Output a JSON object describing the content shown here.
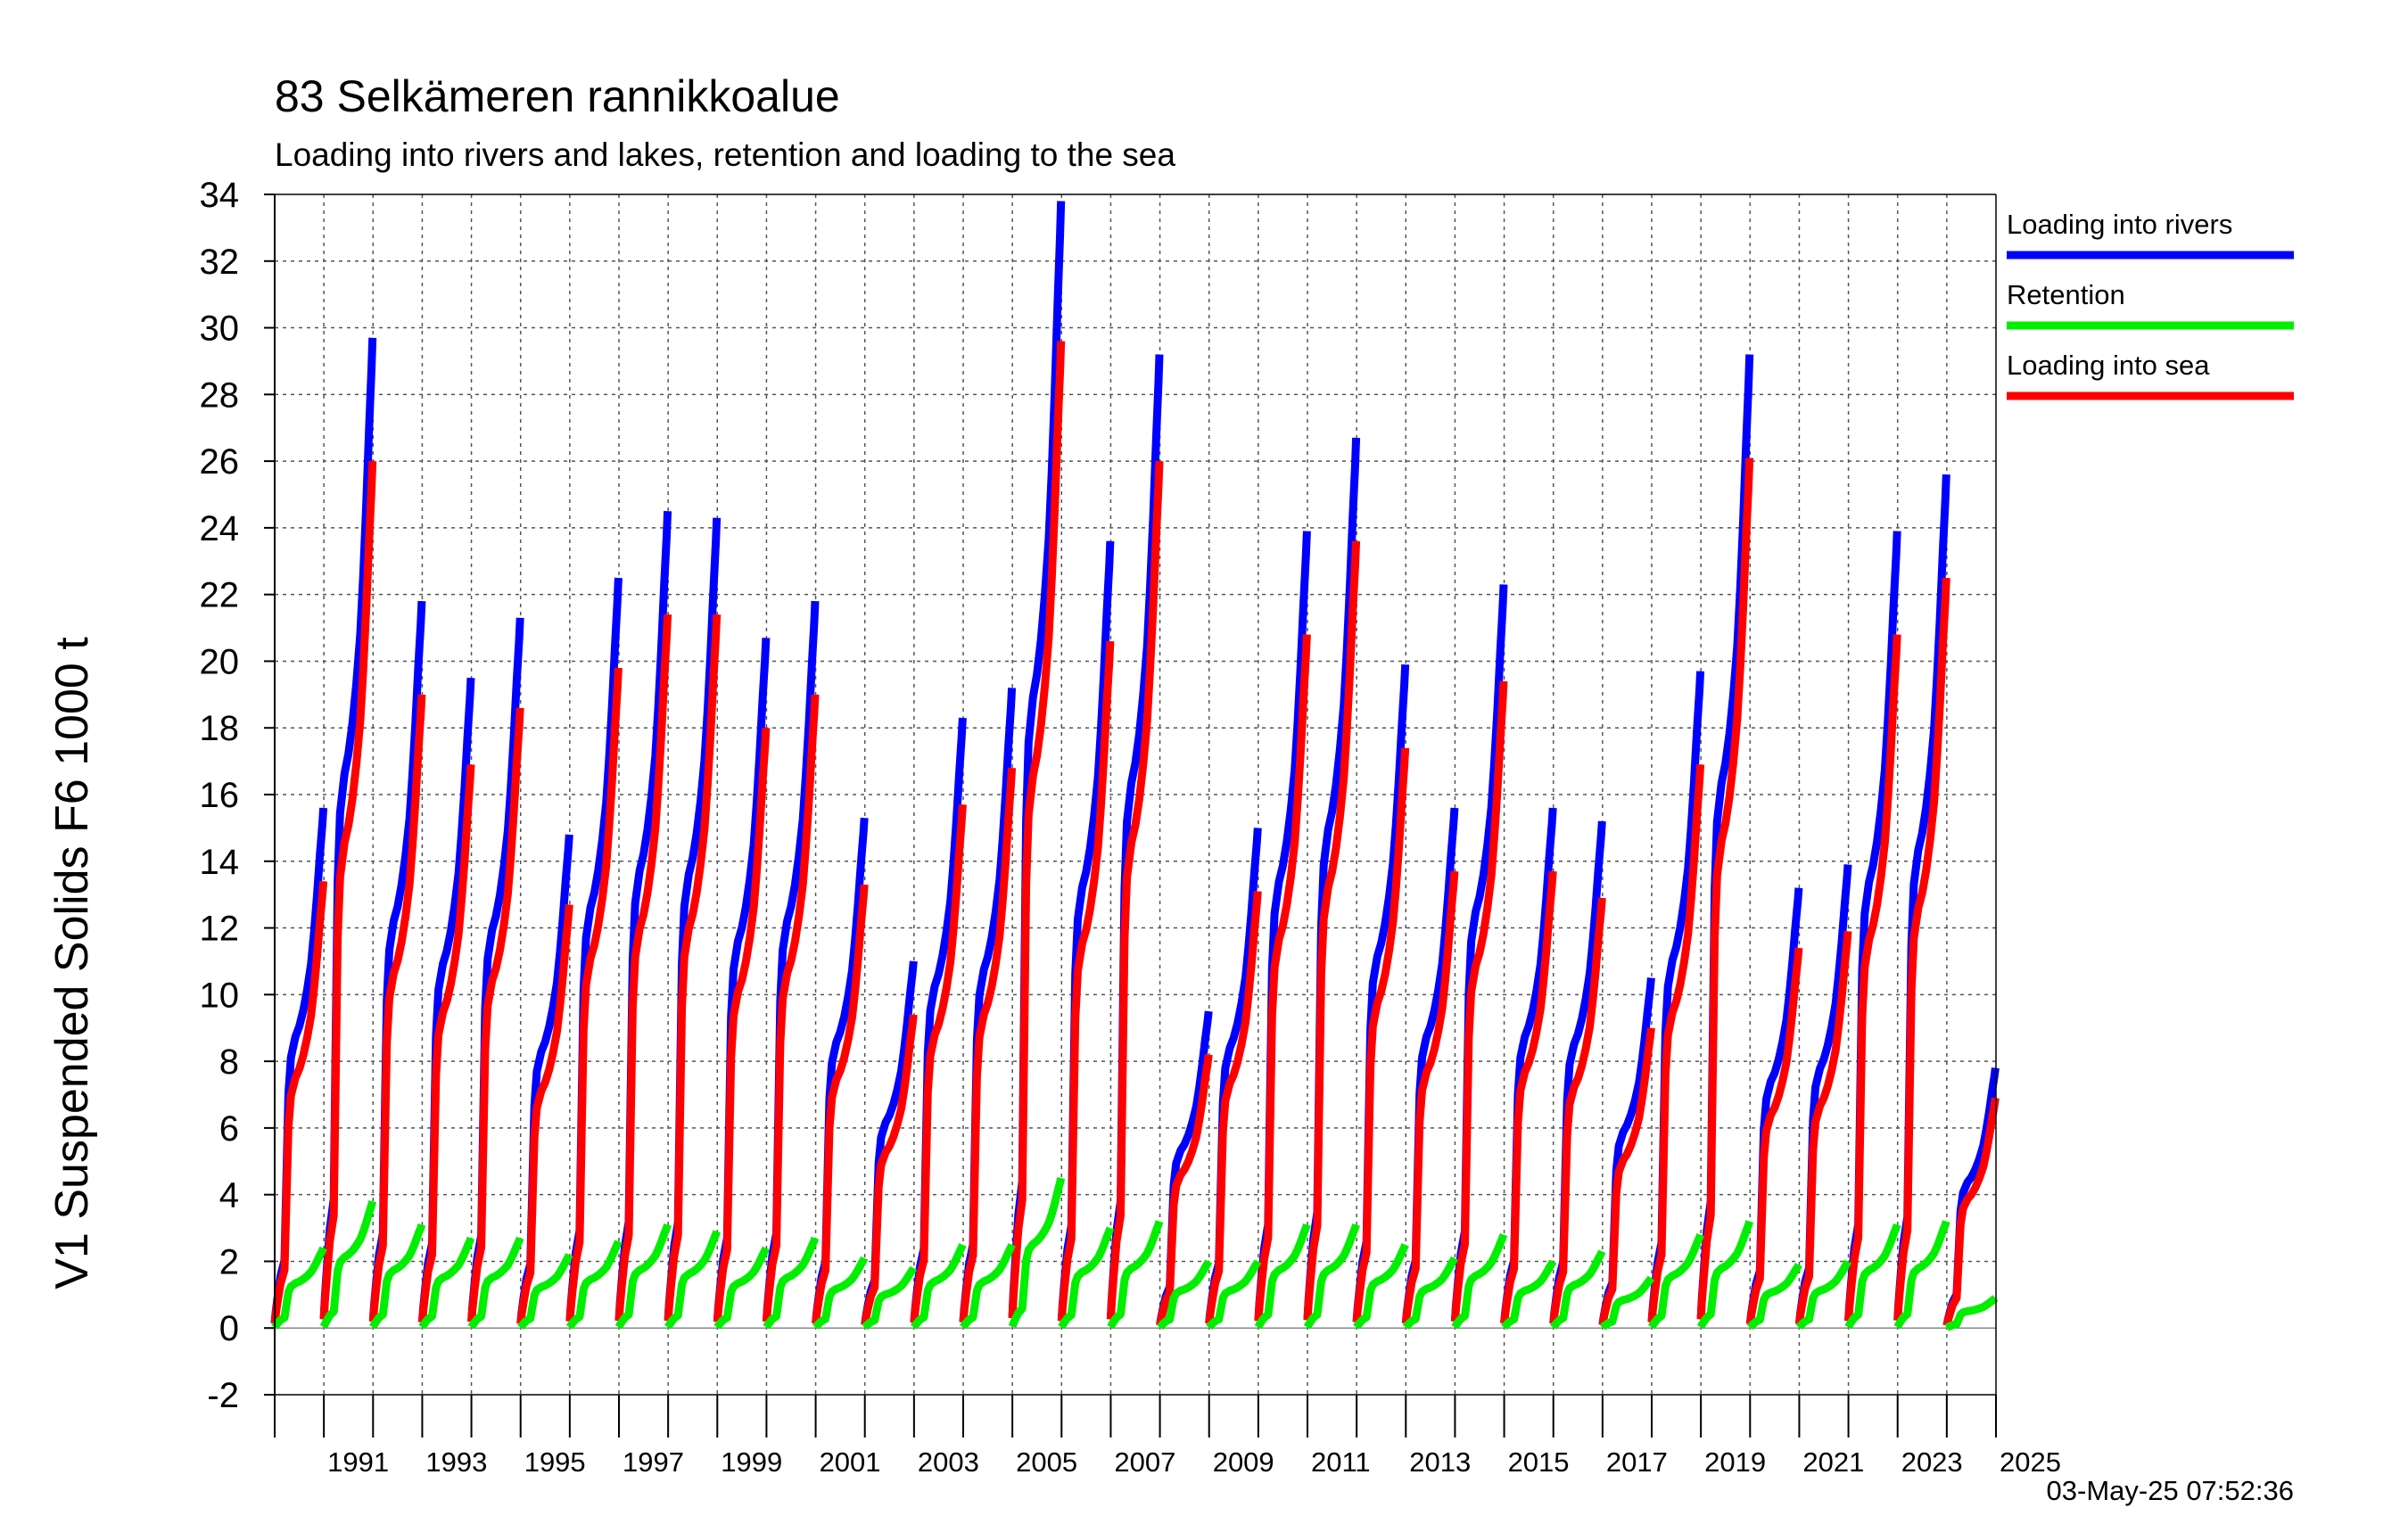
{
  "chart_data": {
    "type": "line",
    "title": "83 Selkämeren rannikkoalue",
    "subtitle": "Loading into rivers and lakes, retention and loading to the sea",
    "ylabel": "V1 Suspended Solids F6 1000 t",
    "xlabel": "",
    "ylim": [
      -2,
      34
    ],
    "yticks": [
      -2,
      0,
      2,
      4,
      6,
      8,
      10,
      12,
      14,
      16,
      18,
      20,
      22,
      24,
      26,
      28,
      30,
      32,
      34
    ],
    "xlim": [
      1990,
      2025
    ],
    "xtick_labels": [
      "1991",
      "1993",
      "1995",
      "1997",
      "1999",
      "2001",
      "2003",
      "2005",
      "2007",
      "2009",
      "2011",
      "2013",
      "2015",
      "2017",
      "2019",
      "2021",
      "2023",
      "2025"
    ],
    "grid": true,
    "legend_position": "right",
    "timestamp": "03-May-25 07:52:36",
    "years": [
      1990,
      1991,
      1992,
      1993,
      1994,
      1995,
      1996,
      1997,
      1998,
      1999,
      2000,
      2001,
      2002,
      2003,
      2004,
      2005,
      2006,
      2007,
      2008,
      2009,
      2010,
      2011,
      2012,
      2013,
      2014,
      2015,
      2016,
      2017,
      2018,
      2019,
      2020,
      2021,
      2022,
      2023,
      2024
    ],
    "series": [
      {
        "name": "Loading into rivers",
        "color": "#0000ff",
        "annual_totals": [
          15.6,
          29.7,
          21.8,
          19.5,
          21.3,
          14.8,
          22.5,
          24.5,
          24.3,
          20.7,
          21.8,
          15.3,
          11.0,
          18.3,
          19.2,
          33.8,
          23.6,
          29.2,
          9.5,
          15.0,
          23.9,
          26.7,
          19.9,
          15.6,
          22.3,
          15.6,
          15.2,
          10.5,
          19.7,
          29.2,
          13.2,
          13.9,
          23.9,
          25.6,
          7.8
        ]
      },
      {
        "name": "Retention",
        "color": "#00ee00",
        "annual_totals": [
          2.4,
          3.8,
          3.1,
          2.7,
          2.7,
          2.2,
          2.6,
          3.1,
          2.9,
          2.4,
          2.7,
          2.1,
          1.8,
          2.5,
          2.5,
          4.5,
          3.0,
          3.2,
          2.0,
          2.0,
          3.1,
          3.1,
          2.5,
          2.1,
          2.8,
          2.0,
          2.3,
          1.5,
          2.8,
          3.2,
          1.9,
          2.0,
          3.1,
          3.2,
          0.9
        ]
      },
      {
        "name": "Loading into sea",
        "color": "#ff0000",
        "annual_totals": [
          13.4,
          26.0,
          19.0,
          16.9,
          18.6,
          12.7,
          19.8,
          21.4,
          21.4,
          18.0,
          19.0,
          13.3,
          9.4,
          15.7,
          16.8,
          29.6,
          20.6,
          26.0,
          8.2,
          13.1,
          20.8,
          23.6,
          17.4,
          13.7,
          19.4,
          13.7,
          12.9,
          9.0,
          16.9,
          26.1,
          11.4,
          11.9,
          20.8,
          22.5,
          6.9
        ]
      }
    ]
  }
}
